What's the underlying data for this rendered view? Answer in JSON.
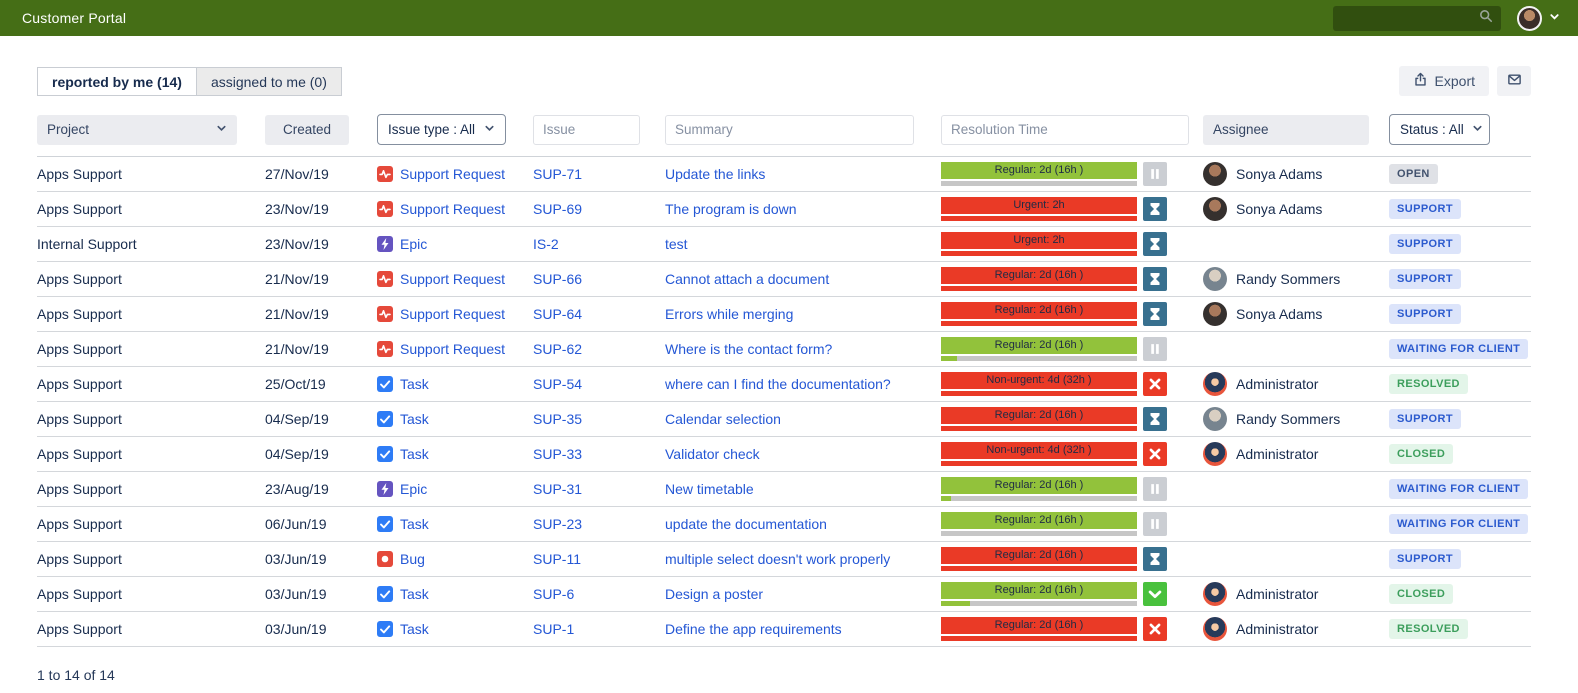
{
  "header": {
    "title": "Customer Portal",
    "search_value": ""
  },
  "tabs": [
    {
      "label": "reported by me (14)",
      "active": true
    },
    {
      "label": "assigned to me (0)",
      "active": false
    }
  ],
  "toolbar": {
    "export_label": "Export"
  },
  "filters": {
    "project_label": "Project",
    "created_label": "Created",
    "issue_type_label": "Issue type : All",
    "issue_placeholder": "Issue",
    "summary_placeholder": "Summary",
    "resolution_placeholder": "Resolution Time",
    "assignee_label": "Assignee",
    "status_label": "Status : All"
  },
  "table": {
    "rows": [
      {
        "project": "Apps Support",
        "created": "27/Nov/19",
        "type": "Support Request",
        "type_icon": "support",
        "key": "SUP-71",
        "summary": "Update the links",
        "resolution": "Regular: 2d (16h )",
        "bar": "green",
        "progress_pct": 0,
        "progress_color": "green",
        "state": "pause",
        "assignee": "Sonya Adams",
        "avatar": "sonya",
        "status": "OPEN",
        "status_style": "gray"
      },
      {
        "project": "Apps Support",
        "created": "23/Nov/19",
        "type": "Support Request",
        "type_icon": "support",
        "key": "SUP-69",
        "summary": "The program is down",
        "resolution": "Urgent: 2h",
        "bar": "red",
        "progress_pct": 100,
        "progress_color": "red",
        "state": "hourglass",
        "assignee": "Sonya Adams",
        "avatar": "sonya",
        "status": "SUPPORT",
        "status_style": "blue"
      },
      {
        "project": "Internal Support",
        "created": "23/Nov/19",
        "type": "Epic",
        "type_icon": "epic",
        "key": "IS-2",
        "summary": "test",
        "resolution": "Urgent: 2h",
        "bar": "red",
        "progress_pct": 100,
        "progress_color": "red",
        "state": "hourglass",
        "assignee": "",
        "avatar": "",
        "status": "SUPPORT",
        "status_style": "blue"
      },
      {
        "project": "Apps Support",
        "created": "21/Nov/19",
        "type": "Support Request",
        "type_icon": "support",
        "key": "SUP-66",
        "summary": "Cannot attach a document",
        "resolution": "Regular: 2d (16h )",
        "bar": "red",
        "progress_pct": 100,
        "progress_color": "red",
        "state": "hourglass",
        "assignee": "Randy Sommers",
        "avatar": "randy",
        "status": "SUPPORT",
        "status_style": "blue"
      },
      {
        "project": "Apps Support",
        "created": "21/Nov/19",
        "type": "Support Request",
        "type_icon": "support",
        "key": "SUP-64",
        "summary": "Errors while merging",
        "resolution": "Regular: 2d (16h )",
        "bar": "red",
        "progress_pct": 100,
        "progress_color": "red",
        "state": "hourglass",
        "assignee": "Sonya Adams",
        "avatar": "sonya",
        "status": "SUPPORT",
        "status_style": "blue"
      },
      {
        "project": "Apps Support",
        "created": "21/Nov/19",
        "type": "Support Request",
        "type_icon": "support",
        "key": "SUP-62",
        "summary": "Where is the contact form?",
        "resolution": "Regular: 2d (16h )",
        "bar": "green",
        "progress_pct": 8,
        "progress_color": "green",
        "state": "pause",
        "assignee": "",
        "avatar": "",
        "status": "WAITING FOR CLIENT",
        "status_style": "blue"
      },
      {
        "project": "Apps Support",
        "created": "25/Oct/19",
        "type": "Task",
        "type_icon": "task",
        "key": "SUP-54",
        "summary": "where can I find the documentation?",
        "resolution": "Non-urgent: 4d (32h )",
        "bar": "red",
        "progress_pct": 100,
        "progress_color": "red",
        "state": "x",
        "assignee": "Administrator",
        "avatar": "admin",
        "status": "RESOLVED",
        "status_style": "green"
      },
      {
        "project": "Apps Support",
        "created": "04/Sep/19",
        "type": "Task",
        "type_icon": "task",
        "key": "SUP-35",
        "summary": "Calendar selection",
        "resolution": "Regular: 2d (16h )",
        "bar": "red",
        "progress_pct": 100,
        "progress_color": "red",
        "state": "hourglass",
        "assignee": "Randy Sommers",
        "avatar": "randy",
        "status": "SUPPORT",
        "status_style": "blue"
      },
      {
        "project": "Apps Support",
        "created": "04/Sep/19",
        "type": "Task",
        "type_icon": "task",
        "key": "SUP-33",
        "summary": "Validator check",
        "resolution": "Non-urgent: 4d (32h )",
        "bar": "red",
        "progress_pct": 100,
        "progress_color": "red",
        "state": "x",
        "assignee": "Administrator",
        "avatar": "admin",
        "status": "CLOSED",
        "status_style": "green"
      },
      {
        "project": "Apps Support",
        "created": "23/Aug/19",
        "type": "Epic",
        "type_icon": "epic",
        "key": "SUP-31",
        "summary": "New timetable",
        "resolution": "Regular: 2d (16h )",
        "bar": "green",
        "progress_pct": 5,
        "progress_color": "green",
        "state": "pause",
        "assignee": "",
        "avatar": "",
        "status": "WAITING FOR CLIENT",
        "status_style": "blue"
      },
      {
        "project": "Apps Support",
        "created": "06/Jun/19",
        "type": "Task",
        "type_icon": "task",
        "key": "SUP-23",
        "summary": "update the documentation",
        "resolution": "Regular: 2d (16h )",
        "bar": "green",
        "progress_pct": 0,
        "progress_color": "green",
        "state": "pause",
        "assignee": "",
        "avatar": "",
        "status": "WAITING FOR CLIENT",
        "status_style": "blue"
      },
      {
        "project": "Apps Support",
        "created": "03/Jun/19",
        "type": "Bug",
        "type_icon": "bug",
        "key": "SUP-11",
        "summary": "multiple select doesn't work properly",
        "resolution": "Regular: 2d (16h )",
        "bar": "red",
        "progress_pct": 100,
        "progress_color": "red",
        "state": "hourglass",
        "assignee": "",
        "avatar": "",
        "status": "SUPPORT",
        "status_style": "blue"
      },
      {
        "project": "Apps Support",
        "created": "03/Jun/19",
        "type": "Task",
        "type_icon": "task",
        "key": "SUP-6",
        "summary": "Design a poster",
        "resolution": "Regular: 2d (16h )",
        "bar": "green",
        "progress_pct": 15,
        "progress_color": "green",
        "state": "check",
        "assignee": "Administrator",
        "avatar": "admin",
        "status": "CLOSED",
        "status_style": "green"
      },
      {
        "project": "Apps Support",
        "created": "03/Jun/19",
        "type": "Task",
        "type_icon": "task",
        "key": "SUP-1",
        "summary": "Define the app requirements",
        "resolution": "Regular: 2d (16h )",
        "bar": "red",
        "progress_pct": 100,
        "progress_color": "red",
        "state": "x",
        "assignee": "Administrator",
        "avatar": "admin",
        "status": "RESOLVED",
        "status_style": "green"
      }
    ]
  },
  "footer": {
    "count_text": "1 to 14 of 14"
  },
  "colors": {
    "nav_green": "#456e16",
    "sla_green": "#92c23b",
    "sla_red": "#ea3a26",
    "link_blue": "#2457d5",
    "badge_blue_bg": "#dce4fa",
    "badge_blue_text": "#2b5ace",
    "badge_green_bg": "#e3f5e9",
    "badge_green_text": "#3c9e5c",
    "badge_gray_bg": "#dfe1e6",
    "badge_gray_text": "#42526e"
  }
}
